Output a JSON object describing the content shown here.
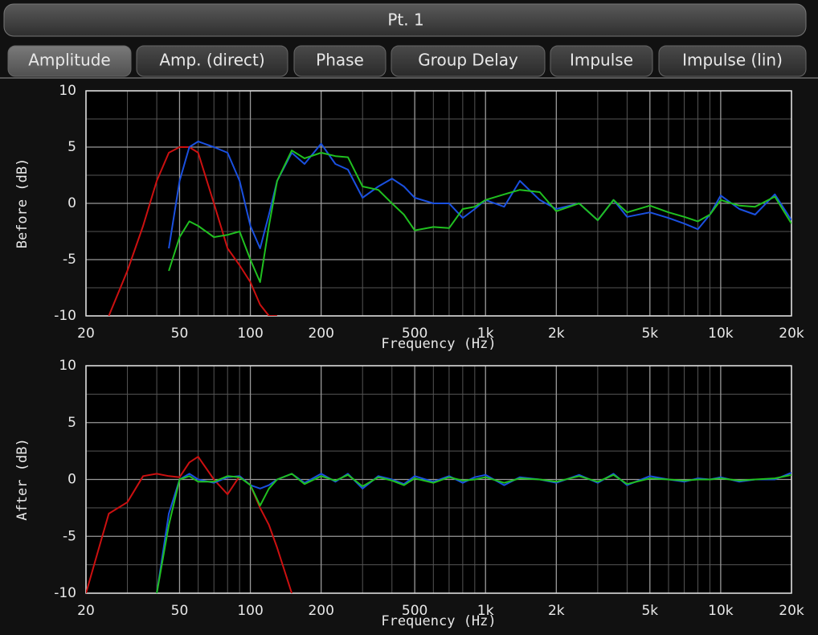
{
  "window": {
    "title": "Pt. 1",
    "tabs": [
      "Amplitude",
      "Amp. (direct)",
      "Phase",
      "Group Delay",
      "Impulse",
      "Impulse (lin)"
    ]
  },
  "chart_data": [
    {
      "type": "line",
      "xlabel": "Frequency (Hz)",
      "ylabel": "Before (dB)",
      "xscale": "log",
      "grid": true,
      "xlim": [
        20,
        20000
      ],
      "ylim": [
        -10,
        10
      ],
      "xticks": [
        20,
        50,
        100,
        200,
        500,
        {
          "value": 1000,
          "label": "1k"
        },
        {
          "value": 2000,
          "label": "2k"
        },
        {
          "value": 5000,
          "label": "5k"
        },
        {
          "value": 10000,
          "label": "10k"
        },
        {
          "value": 20000,
          "label": "20k"
        }
      ],
      "xminorticks": [
        30,
        40,
        60,
        70,
        80,
        90,
        300,
        400,
        600,
        700,
        800,
        900,
        3000,
        4000,
        6000,
        7000,
        8000,
        9000
      ],
      "yticks": [
        -10,
        -5,
        0,
        5,
        10
      ],
      "yminorticks": [
        -7.5,
        -2.5,
        2.5,
        7.5
      ],
      "x": [
        20,
        25,
        30,
        35,
        40,
        45,
        50,
        55,
        60,
        70,
        80,
        90,
        100,
        110,
        120,
        130,
        150,
        170,
        200,
        230,
        260,
        300,
        350,
        400,
        450,
        500,
        600,
        700,
        800,
        900,
        1000,
        1200,
        1400,
        1700,
        2000,
        2500,
        3000,
        3500,
        4000,
        5000,
        6000,
        7000,
        8000,
        9000,
        10000,
        12000,
        14000,
        17000,
        20000
      ],
      "series": [
        {
          "color": "#cc1010",
          "values": [
            null,
            -10,
            -6,
            -2,
            2,
            4.5,
            5,
            5,
            4.5,
            0,
            -4,
            -5.5,
            -7,
            -9,
            -10,
            -10,
            null,
            null,
            null,
            null,
            null,
            null,
            null,
            null,
            null,
            null,
            null,
            null,
            null,
            null,
            null,
            null,
            null,
            null,
            null,
            null,
            null,
            null,
            null,
            null,
            null,
            null,
            null,
            null,
            null,
            null,
            null,
            null,
            null
          ]
        },
        {
          "color": "#1a50e0",
          "values": [
            null,
            null,
            null,
            null,
            null,
            -4,
            2,
            5,
            5.5,
            5,
            4.5,
            2,
            -2,
            -4,
            -1,
            2,
            4.5,
            3.5,
            5.3,
            3.5,
            3,
            0.5,
            1.5,
            2.2,
            1.5,
            0.5,
            0,
            0,
            -1.3,
            -0.5,
            0.3,
            -0.3,
            2,
            0.3,
            -0.5,
            0,
            -1.5,
            0.3,
            -1.2,
            -0.8,
            -1.3,
            -1.8,
            -2.3,
            -1,
            0.7,
            -0.5,
            -1,
            0.8,
            -1.5
          ]
        },
        {
          "color": "#20c020",
          "values": [
            null,
            null,
            null,
            null,
            null,
            -6,
            -3,
            -1.6,
            -2,
            -3,
            -2.8,
            -2.5,
            -5,
            -7,
            -2,
            2,
            4.7,
            4,
            4.5,
            4.2,
            4.1,
            1.5,
            1.2,
            0,
            -1,
            -2.4,
            -2.1,
            -2.2,
            -0.5,
            -0.3,
            0.3,
            0.8,
            1.2,
            1,
            -0.7,
            0,
            -1.5,
            0.3,
            -0.8,
            -0.2,
            -0.8,
            -1.2,
            -1.6,
            -1,
            0.3,
            -0.2,
            -0.3,
            0.6,
            -1.8
          ]
        }
      ]
    },
    {
      "type": "line",
      "xlabel": "Frequency (Hz)",
      "ylabel": "After (dB)",
      "xscale": "log",
      "grid": true,
      "xlim": [
        20,
        20000
      ],
      "ylim": [
        -10,
        10
      ],
      "xticks": [
        20,
        50,
        100,
        200,
        500,
        {
          "value": 1000,
          "label": "1k"
        },
        {
          "value": 2000,
          "label": "2k"
        },
        {
          "value": 5000,
          "label": "5k"
        },
        {
          "value": 10000,
          "label": "10k"
        },
        {
          "value": 20000,
          "label": "20k"
        }
      ],
      "xminorticks": [
        30,
        40,
        60,
        70,
        80,
        90,
        300,
        400,
        600,
        700,
        800,
        900,
        3000,
        4000,
        6000,
        7000,
        8000,
        9000
      ],
      "yticks": [
        -10,
        -5,
        0,
        5,
        10
      ],
      "yminorticks": [
        -7.5,
        -2.5,
        2.5,
        7.5
      ],
      "x": [
        20,
        25,
        30,
        35,
        40,
        45,
        50,
        55,
        60,
        70,
        80,
        90,
        100,
        110,
        120,
        130,
        150,
        170,
        200,
        230,
        260,
        300,
        350,
        400,
        450,
        500,
        600,
        700,
        800,
        900,
        1000,
        1200,
        1400,
        1700,
        2000,
        2500,
        3000,
        3500,
        4000,
        5000,
        6000,
        7000,
        8000,
        9000,
        10000,
        12000,
        14000,
        17000,
        20000
      ],
      "series": [
        {
          "color": "#cc1010",
          "values": [
            -10,
            -3,
            -2,
            0.3,
            0.5,
            0.3,
            0.2,
            1.5,
            2,
            0,
            -1.3,
            0.3,
            -0.5,
            -2.5,
            -4,
            -6,
            -10,
            null,
            null,
            null,
            null,
            null,
            null,
            null,
            null,
            null,
            null,
            null,
            null,
            null,
            null,
            null,
            null,
            null,
            null,
            null,
            null,
            null,
            null,
            null,
            null,
            null,
            null,
            null,
            null,
            null,
            null,
            null,
            null
          ]
        },
        {
          "color": "#1a50e0",
          "values": [
            null,
            null,
            null,
            null,
            -10,
            -3,
            0,
            0.5,
            0,
            -0.3,
            0.2,
            0.3,
            -0.5,
            -0.8,
            -0.5,
            0,
            0.5,
            -0.3,
            0.5,
            -0.2,
            0.5,
            -0.8,
            0.3,
            0,
            -0.4,
            0.3,
            -0.2,
            0.3,
            -0.3,
            0.2,
            0.4,
            -0.5,
            0.2,
            0,
            -0.3,
            0.4,
            -0.3,
            0.5,
            -0.5,
            0.3,
            0,
            -0.2,
            0.1,
            0,
            0.2,
            -0.2,
            0,
            0,
            0.6
          ]
        },
        {
          "color": "#20c020",
          "values": [
            null,
            null,
            null,
            null,
            -10,
            -4,
            0,
            0.3,
            -0.2,
            -0.2,
            0.3,
            0.2,
            -0.5,
            -2.3,
            -0.8,
            0,
            0.5,
            -0.4,
            0.3,
            -0.1,
            0.4,
            -0.6,
            0.2,
            -0.1,
            -0.5,
            0.1,
            -0.3,
            0.2,
            -0.1,
            0,
            0.2,
            -0.3,
            0.1,
            0,
            -0.2,
            0.3,
            -0.2,
            0.4,
            -0.4,
            0.1,
            0,
            -0.1,
            0,
            0,
            0.1,
            -0.1,
            0,
            0.1,
            0.4
          ]
        }
      ]
    }
  ]
}
